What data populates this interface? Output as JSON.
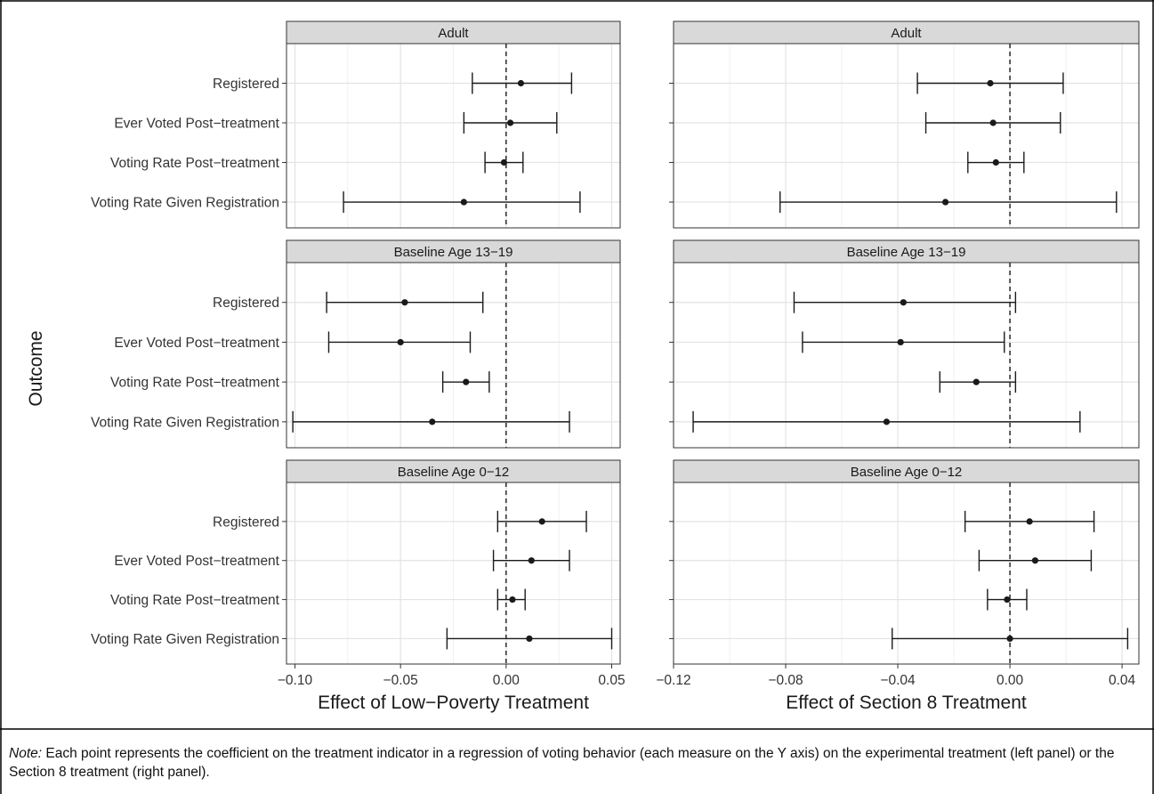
{
  "note": {
    "label": "Note:",
    "text": "Each point represents the coefficient on the treatment indicator in a regression of voting behavior (each measure on the Y axis) on the experimental treatment (left panel) or the Section 8 treatment (right panel)."
  },
  "chart_data": {
    "type": "scatter",
    "subtype": "coefficient-plot-faceted",
    "ylabel": "Outcome",
    "categories": [
      "Registered",
      "Ever Voted Post−treatment",
      "Voting Rate Post−treatment",
      "Voting Rate Given Registration"
    ],
    "row_facets": [
      "Adult",
      "Baseline Age 13−19",
      "Baseline Age 0−12"
    ],
    "grid": true,
    "reference_line": 0,
    "panels": [
      {
        "xlabel": "Effect of Low−Poverty Treatment",
        "xlim": [
          -0.104,
          0.054
        ],
        "xticks": [
          -0.1,
          -0.05,
          0.0,
          0.05
        ],
        "xtick_labels": [
          "−0.10",
          "−0.05",
          "0.00",
          "0.05"
        ],
        "facets": [
          {
            "name": "Adult",
            "estimates": [
              {
                "outcome": "Registered",
                "est": 0.007,
                "lo": -0.016,
                "hi": 0.031
              },
              {
                "outcome": "Ever Voted Post−treatment",
                "est": 0.002,
                "lo": -0.02,
                "hi": 0.024
              },
              {
                "outcome": "Voting Rate Post−treatment",
                "est": -0.001,
                "lo": -0.01,
                "hi": 0.008
              },
              {
                "outcome": "Voting Rate Given Registration",
                "est": -0.02,
                "lo": -0.077,
                "hi": 0.035
              }
            ]
          },
          {
            "name": "Baseline Age 13−19",
            "estimates": [
              {
                "outcome": "Registered",
                "est": -0.048,
                "lo": -0.085,
                "hi": -0.011
              },
              {
                "outcome": "Ever Voted Post−treatment",
                "est": -0.05,
                "lo": -0.084,
                "hi": -0.017
              },
              {
                "outcome": "Voting Rate Post−treatment",
                "est": -0.019,
                "lo": -0.03,
                "hi": -0.008
              },
              {
                "outcome": "Voting Rate Given Registration",
                "est": -0.035,
                "lo": -0.101,
                "hi": 0.03
              }
            ]
          },
          {
            "name": "Baseline Age 0−12",
            "estimates": [
              {
                "outcome": "Registered",
                "est": 0.017,
                "lo": -0.004,
                "hi": 0.038
              },
              {
                "outcome": "Ever Voted Post−treatment",
                "est": 0.012,
                "lo": -0.006,
                "hi": 0.03
              },
              {
                "outcome": "Voting Rate Post−treatment",
                "est": 0.003,
                "lo": -0.004,
                "hi": 0.009
              },
              {
                "outcome": "Voting Rate Given Registration",
                "est": 0.011,
                "lo": -0.028,
                "hi": 0.05
              }
            ]
          }
        ]
      },
      {
        "xlabel": "Effect of Section 8 Treatment",
        "xlim": [
          -0.12,
          0.046
        ],
        "xticks": [
          -0.12,
          -0.08,
          -0.04,
          0.0,
          0.04
        ],
        "xtick_labels": [
          "−0.12",
          "−0.08",
          "−0.04",
          "0.00",
          "0.04"
        ],
        "facets": [
          {
            "name": "Adult",
            "estimates": [
              {
                "outcome": "Registered",
                "est": -0.007,
                "lo": -0.033,
                "hi": 0.019
              },
              {
                "outcome": "Ever Voted Post−treatment",
                "est": -0.006,
                "lo": -0.03,
                "hi": 0.018
              },
              {
                "outcome": "Voting Rate Post−treatment",
                "est": -0.005,
                "lo": -0.015,
                "hi": 0.005
              },
              {
                "outcome": "Voting Rate Given Registration",
                "est": -0.023,
                "lo": -0.082,
                "hi": 0.038
              }
            ]
          },
          {
            "name": "Baseline Age 13−19",
            "estimates": [
              {
                "outcome": "Registered",
                "est": -0.038,
                "lo": -0.077,
                "hi": 0.002
              },
              {
                "outcome": "Ever Voted Post−treatment",
                "est": -0.039,
                "lo": -0.074,
                "hi": -0.002
              },
              {
                "outcome": "Voting Rate Post−treatment",
                "est": -0.012,
                "lo": -0.025,
                "hi": 0.002
              },
              {
                "outcome": "Voting Rate Given Registration",
                "est": -0.044,
                "lo": -0.113,
                "hi": 0.025
              }
            ]
          },
          {
            "name": "Baseline Age 0−12",
            "estimates": [
              {
                "outcome": "Registered",
                "est": 0.007,
                "lo": -0.016,
                "hi": 0.03
              },
              {
                "outcome": "Ever Voted Post−treatment",
                "est": 0.009,
                "lo": -0.011,
                "hi": 0.029
              },
              {
                "outcome": "Voting Rate Post−treatment",
                "est": -0.001,
                "lo": -0.008,
                "hi": 0.006
              },
              {
                "outcome": "Voting Rate Given Registration",
                "est": 0.0,
                "lo": -0.042,
                "hi": 0.042
              }
            ]
          }
        ]
      }
    ]
  }
}
